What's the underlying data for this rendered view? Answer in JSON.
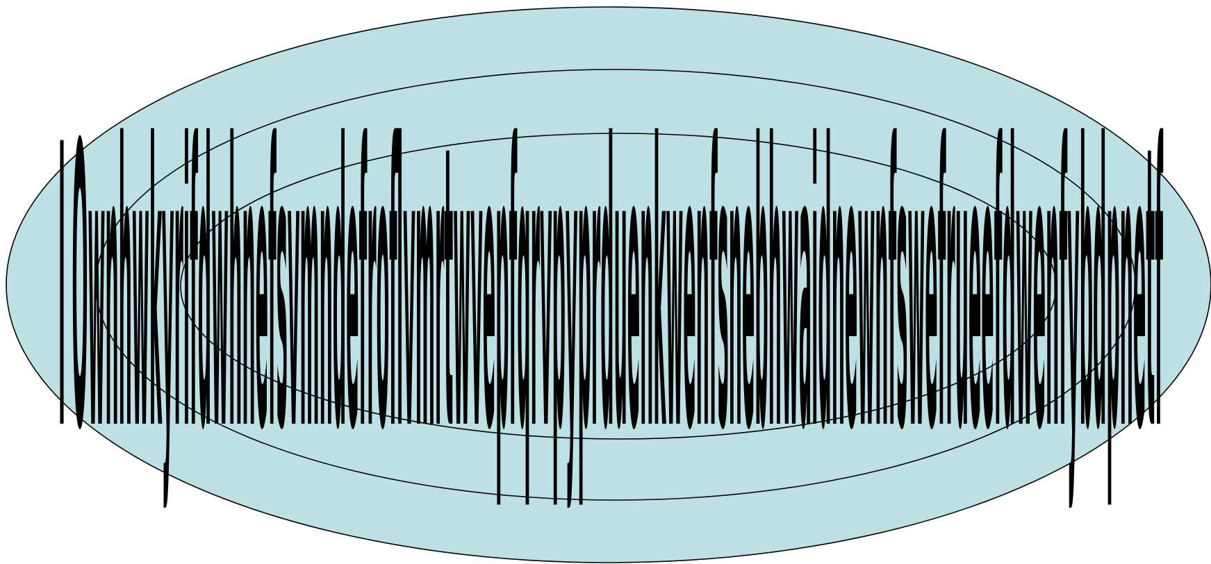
{
  "colors": {
    "ellipse_fill": "#bde0e5",
    "ellipse_stroke": "#000000",
    "text": "#000000"
  },
  "diagram": {
    "ring_count": 3,
    "overlay_text": "I Ownhwkyrifdwhnefsvmndefroflvmrtwvepfqrvpyprduenkwenfsnebhwaidnewnfswefrueefdwenfybdpnetf"
  }
}
